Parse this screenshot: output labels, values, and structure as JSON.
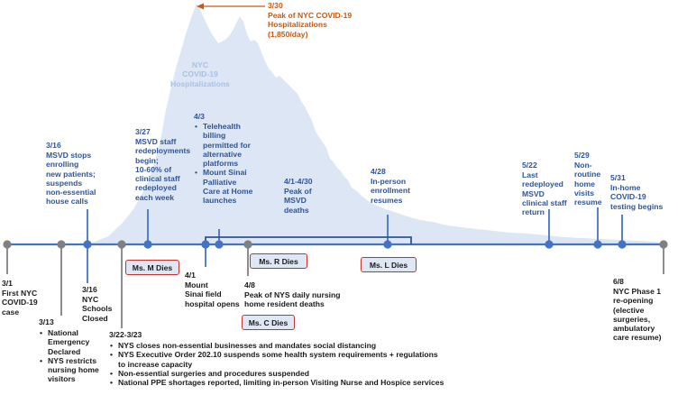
{
  "peak": {
    "date": "3/30",
    "text": "Peak of NYC COVID-19\nHospitalizations\n(1,850/day)"
  },
  "hospitalizations_label": "NYC\nCOVID-19\nHospitalizations",
  "events_above": {
    "mar16": {
      "date": "3/16",
      "text": "MSVD stops\nenrolling\nnew patients;\nsuspends\nnon-essential\nhouse calls"
    },
    "mar27": {
      "date": "3/27",
      "text": "MSVD staff\nredeployments\nbegin;\n10-60% of\nclinical staff\nredeployed\neach week"
    },
    "apr3": {
      "date": "4/3",
      "items": [
        "Telehealth\nbilling\npermitted for\nalternative\nplatforms",
        "Mount Sinai\nPalliative\nCare at Home\nlaunches"
      ]
    },
    "apr1_30": {
      "date": "4/1-4/30",
      "text": "Peak of\nMSVD\ndeaths"
    },
    "apr28": {
      "date": "4/28",
      "text": "In-person\nenrollment\nresumes"
    },
    "may22": {
      "date": "5/22",
      "text": "Last\nredeployed\nMSVD\nclinical staff\nreturn"
    },
    "may29": {
      "date": "5/29",
      "text": "Non-\nroutine\nhome\nvisits\nresume"
    },
    "may31": {
      "date": "5/31",
      "text": "In-home\nCOVID-19\ntesting begins"
    }
  },
  "events_below": {
    "mar1": {
      "date": "3/1",
      "text": "First NYC\nCOVID-19\ncase"
    },
    "mar13": {
      "date": "3/13",
      "items": [
        "National\nEmergency\nDeclared",
        "NYS restricts\nnursing home\nvisitors"
      ]
    },
    "mar16": {
      "date": "3/16",
      "text": "NYC\nSchools\nClosed"
    },
    "mar22_23": {
      "date": "3/22-3/23",
      "items": [
        "NYS closes non-essential businesses and mandates social distancing",
        "NYS Executive Order 202.10 suspends some health system requirements + regulations\nto increase capacity",
        "Non-essential surgeries and procedures suspended",
        "National PPE shortages reported, limiting in-person Visiting Nurse and Hospice services"
      ]
    },
    "apr1": {
      "date": "4/1",
      "text": "Mount\nSinai field\nhospital opens"
    },
    "apr8": {
      "date": "4/8",
      "text": "Peak of NYS daily nursing\nhome resident deaths"
    },
    "jun8": {
      "date": "6/8",
      "text": "NYC Phase 1\nre-opening\n(elective\nsurgeries,\nambulatory\ncare resume)"
    }
  },
  "deaths": {
    "m": "Ms. M Dies",
    "r": "Ms. R Dies",
    "l": "Ms. L Dies",
    "c": "Ms. C Dies"
  },
  "colors": {
    "timeline": "#4472c4",
    "dot_blue": "#4472c4",
    "dot_gray": "#808080",
    "area": "#dde6f4",
    "orange": "#c55a11",
    "death_border": "#c9302c",
    "death_fill": "#dfe7f5"
  }
}
